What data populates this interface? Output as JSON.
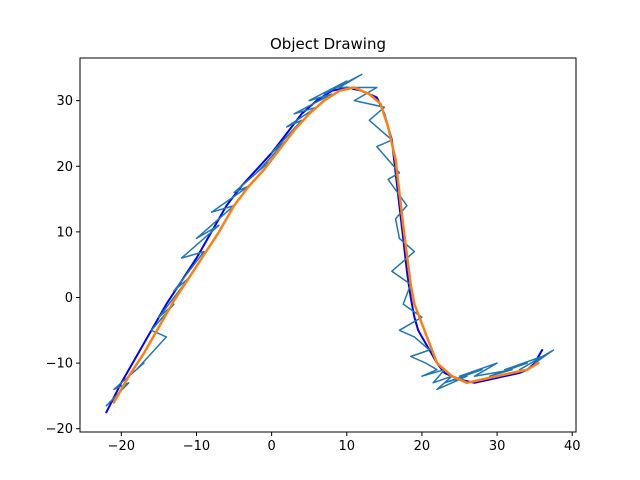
{
  "chart_data": {
    "type": "line",
    "title": "Object Drawing",
    "xlabel": "",
    "ylabel": "",
    "xlim": [
      -25.5,
      40.5
    ],
    "ylim": [
      -20.5,
      36.5
    ],
    "xticks": [
      -20,
      -10,
      0,
      10,
      20,
      30,
      40
    ],
    "yticks": [
      -20,
      -10,
      0,
      10,
      20,
      30
    ],
    "grid": false,
    "legend": "none",
    "series": [
      {
        "color": "#0000ff",
        "linewidth": 2,
        "x": [
          -22,
          -20,
          -18,
          -16,
          -14,
          -12,
          -10,
          -8,
          -6,
          -4,
          -2,
          0,
          2,
          4,
          6,
          8,
          10,
          12,
          14,
          15,
          16,
          16.5,
          17,
          17.5,
          18,
          18.5,
          19,
          19.5,
          20,
          21,
          22,
          23,
          25,
          27,
          29,
          31,
          33,
          34,
          35,
          35.5,
          36
        ],
        "y": [
          -17.5,
          -13,
          -9,
          -5,
          -1,
          2.5,
          6,
          10,
          14,
          17,
          19.5,
          22,
          25,
          28,
          30,
          31.5,
          32,
          31.5,
          30.5,
          28,
          24,
          19,
          14,
          9,
          4,
          0,
          -3,
          -5,
          -6,
          -8,
          -10,
          -11.5,
          -12.5,
          -13,
          -12.5,
          -12,
          -11.5,
          -11,
          -10,
          -9,
          -8
        ]
      },
      {
        "color": "#1f77b4",
        "linewidth": 1.5,
        "x": [
          -22,
          -19,
          -21,
          -17,
          -18,
          -14,
          -16,
          -13,
          -15,
          -11,
          -13,
          -9,
          -12,
          -7,
          -10,
          -5,
          -8,
          -3,
          -5,
          0,
          -2,
          2,
          0,
          4,
          2,
          6,
          3,
          8,
          5,
          10,
          7,
          12,
          9,
          14,
          11,
          15,
          13,
          16,
          14,
          17,
          15.5,
          18,
          16.5,
          17,
          19,
          16,
          18.5,
          17.5,
          20,
          17,
          19,
          21,
          18.5,
          20.5,
          22,
          20,
          23,
          21.5,
          24,
          22,
          26,
          23,
          28,
          25,
          30,
          27,
          32,
          29,
          34,
          31,
          36,
          33,
          37.5,
          35
        ],
        "y": [
          -16.5,
          -13,
          -14,
          -10,
          -11,
          -6,
          -5,
          -1,
          -3,
          3,
          1,
          7,
          6,
          11,
          9,
          14,
          13,
          17,
          16,
          21,
          19,
          24,
          22,
          27,
          26,
          29,
          28,
          31,
          30,
          33,
          31,
          34,
          32,
          32,
          30,
          29,
          27,
          24,
          23,
          19,
          18,
          14,
          12,
          9,
          7,
          4,
          2,
          -1,
          -3,
          -5,
          -6,
          -8,
          -9,
          -10,
          -11,
          -12,
          -11,
          -13,
          -12,
          -14,
          -12,
          -13,
          -11,
          -12,
          -10,
          -12,
          -11,
          -12,
          -10,
          -11,
          -9,
          -11,
          -8,
          -10
        ]
      },
      {
        "color": "#ff7f0e",
        "linewidth": 2.5,
        "x": [
          -21,
          -19,
          -17,
          -15,
          -13,
          -11,
          -9,
          -7,
          -5,
          -3,
          -1,
          1,
          3,
          5,
          7,
          9,
          11,
          13,
          14.5,
          15.5,
          16.5,
          17,
          17.5,
          18,
          18.5,
          19,
          20,
          21,
          22,
          24,
          26,
          28,
          30,
          32,
          34,
          35.5
        ],
        "y": [
          -16,
          -12,
          -8.5,
          -4.5,
          -0.5,
          3,
          6.5,
          10,
          14,
          17,
          19.5,
          22.5,
          25.5,
          28,
          30,
          31.5,
          32,
          31,
          29.5,
          26,
          21,
          16,
          11,
          6.5,
          2,
          -1,
          -4,
          -7,
          -10,
          -12,
          -13,
          -12.5,
          -12,
          -11.5,
          -11,
          -10
        ]
      }
    ]
  }
}
